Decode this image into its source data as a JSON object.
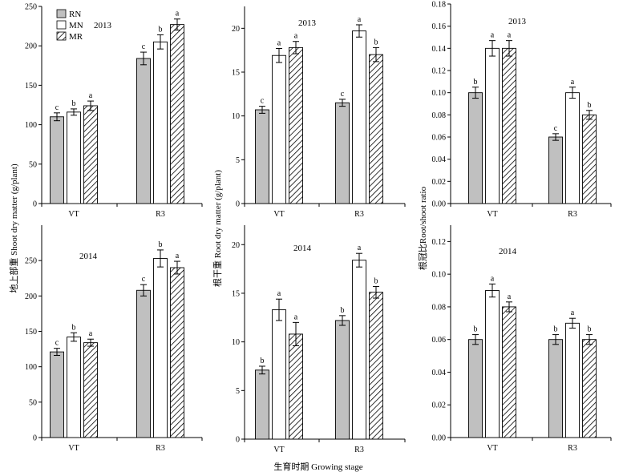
{
  "figure": {
    "xlabel": "生育时期 Growing stage",
    "legend": [
      "RN",
      "MN",
      "MR"
    ],
    "colors": {
      "RN": "#c0c0c0",
      "MN": "#ffffff",
      "MR": "hatch"
    }
  },
  "chart_data": [
    {
      "type": "bar",
      "id": "shoot-2013",
      "year": "2013",
      "categories": [
        "VT",
        "R3"
      ],
      "ylabel": "地上部重 Shoot dry matter (g/plant)",
      "ylim": [
        0,
        250
      ],
      "yticks": [
        0,
        50,
        100,
        150,
        200,
        250
      ],
      "decimals": 0,
      "series": [
        {
          "name": "RN",
          "values": [
            110,
            184
          ],
          "errors": [
            5,
            8
          ],
          "letters": [
            "c",
            "c"
          ]
        },
        {
          "name": "MN",
          "values": [
            116,
            205
          ],
          "errors": [
            4,
            9
          ],
          "letters": [
            "b",
            "b"
          ]
        },
        {
          "name": "MR",
          "values": [
            124,
            227
          ],
          "errors": [
            6,
            7
          ],
          "letters": [
            "a",
            "a"
          ]
        }
      ]
    },
    {
      "type": "bar",
      "id": "root-2013",
      "year": "2013",
      "categories": [
        "VT",
        "R3"
      ],
      "ylabel": "根干重 Root dry matter (g/plant)",
      "ylim": [
        0,
        22.5
      ],
      "yticks": [
        0,
        5,
        10,
        15,
        20
      ],
      "decimals": 0,
      "series": [
        {
          "name": "RN",
          "values": [
            10.7,
            11.5
          ],
          "errors": [
            0.4,
            0.4
          ],
          "letters": [
            "c",
            "c"
          ]
        },
        {
          "name": "MN",
          "values": [
            16.9,
            19.7
          ],
          "errors": [
            0.8,
            0.7
          ],
          "letters": [
            "a",
            "a"
          ]
        },
        {
          "name": "MR",
          "values": [
            17.8,
            17.0
          ],
          "errors": [
            0.7,
            0.8
          ],
          "letters": [
            "a",
            "b"
          ]
        }
      ]
    },
    {
      "type": "bar",
      "id": "ratio-2013",
      "year": "2013",
      "categories": [
        "VT",
        "R3"
      ],
      "ylabel": "根冠比Root/shoot ratio",
      "ylim": [
        0,
        0.18
      ],
      "yticks": [
        0,
        0.02,
        0.04,
        0.06,
        0.08,
        0.1,
        0.12,
        0.14,
        0.16,
        0.18
      ],
      "decimals": 2,
      "series": [
        {
          "name": "RN",
          "values": [
            0.1,
            0.06
          ],
          "errors": [
            0.005,
            0.003
          ],
          "letters": [
            "b",
            "c"
          ]
        },
        {
          "name": "MN",
          "values": [
            0.14,
            0.1
          ],
          "errors": [
            0.007,
            0.005
          ],
          "letters": [
            "a",
            "a"
          ]
        },
        {
          "name": "MR",
          "values": [
            0.14,
            0.08
          ],
          "errors": [
            0.007,
            0.004
          ],
          "letters": [
            "a",
            "b"
          ]
        }
      ]
    },
    {
      "type": "bar",
      "id": "shoot-2014",
      "year": "2014",
      "categories": [
        "VT",
        "R3"
      ],
      "ylabel": "地上部重 Shoot dry matter (g/plant)",
      "ylim": [
        0,
        300
      ],
      "yticks": [
        0,
        50,
        100,
        150,
        200,
        250
      ],
      "decimals": 0,
      "series": [
        {
          "name": "RN",
          "values": [
            121,
            208
          ],
          "errors": [
            5,
            8
          ],
          "letters": [
            "c",
            "c"
          ]
        },
        {
          "name": "MN",
          "values": [
            142,
            253
          ],
          "errors": [
            6,
            12
          ],
          "letters": [
            "b",
            "b"
          ]
        },
        {
          "name": "MR",
          "values": [
            134,
            240
          ],
          "errors": [
            5,
            9
          ],
          "letters": [
            "a",
            "a"
          ]
        }
      ]
    },
    {
      "type": "bar",
      "id": "root-2014",
      "year": "2014",
      "categories": [
        "VT",
        "R3"
      ],
      "ylabel": "根干重 Root dry matter (g/plant)",
      "ylim": [
        0,
        22
      ],
      "yticks": [
        0,
        5,
        10,
        15,
        20
      ],
      "decimals": 0,
      "series": [
        {
          "name": "RN",
          "values": [
            7.1,
            12.2
          ],
          "errors": [
            0.4,
            0.5
          ],
          "letters": [
            "b",
            "b"
          ]
        },
        {
          "name": "MN",
          "values": [
            13.3,
            18.4
          ],
          "errors": [
            1.1,
            0.7
          ],
          "letters": [
            "a",
            "a"
          ]
        },
        {
          "name": "MR",
          "values": [
            10.8,
            15.1
          ],
          "errors": [
            1.2,
            0.6
          ],
          "letters": [
            "a",
            "b"
          ]
        }
      ]
    },
    {
      "type": "bar",
      "id": "ratio-2014",
      "year": "2014",
      "categories": [
        "VT",
        "R3"
      ],
      "ylabel": "根冠比Root/shoot ratio",
      "ylim": [
        0,
        0.13
      ],
      "yticks": [
        0,
        0.02,
        0.04,
        0.06,
        0.08,
        0.1,
        0.12
      ],
      "decimals": 2,
      "series": [
        {
          "name": "RN",
          "values": [
            0.06,
            0.06
          ],
          "errors": [
            0.003,
            0.003
          ],
          "letters": [
            "b",
            "b"
          ]
        },
        {
          "name": "MN",
          "values": [
            0.09,
            0.07
          ],
          "errors": [
            0.004,
            0.003
          ],
          "letters": [
            "a",
            "a"
          ]
        },
        {
          "name": "MR",
          "values": [
            0.08,
            0.06
          ],
          "errors": [
            0.003,
            0.003
          ],
          "letters": [
            "a",
            "b"
          ]
        }
      ]
    }
  ]
}
